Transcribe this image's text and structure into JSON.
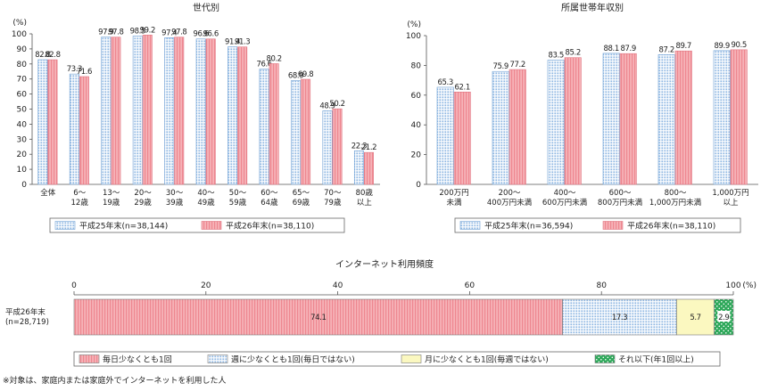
{
  "chart_data": [
    {
      "type": "bar",
      "title": "世代別",
      "unit": "(%)",
      "ylim": [
        0,
        100
      ],
      "yticks": [
        0,
        10,
        20,
        30,
        40,
        50,
        60,
        70,
        80,
        90,
        100
      ],
      "categories": [
        [
          "全体"
        ],
        [
          "6～",
          "12歳"
        ],
        [
          "13～",
          "19歳"
        ],
        [
          "20～",
          "29歳"
        ],
        [
          "30～",
          "39歳"
        ],
        [
          "40～",
          "49歳"
        ],
        [
          "50～",
          "59歳"
        ],
        [
          "60～",
          "64歳"
        ],
        [
          "65～",
          "69歳"
        ],
        [
          "70～",
          "79歳"
        ],
        [
          "80歳",
          "以上"
        ]
      ],
      "series": [
        {
          "name": "平成25年末(n=38,144)",
          "color": "#9ec3e6",
          "pattern": "dots",
          "values": [
            82.8,
            73.3,
            97.9,
            98.5,
            97.4,
            96.6,
            91.4,
            76.6,
            68.9,
            48.9,
            22.3
          ]
        },
        {
          "name": "平成26年末(n=38,110)",
          "color": "#f4a0a6",
          "pattern": "lines",
          "values": [
            82.8,
            71.6,
            97.8,
            99.2,
            97.8,
            96.6,
            91.3,
            80.2,
            69.8,
            50.2,
            21.2
          ]
        }
      ],
      "grid": false,
      "legend": "bottom"
    },
    {
      "type": "bar",
      "title": "所属世帯年収別",
      "unit": "(%)",
      "ylim": [
        0,
        100
      ],
      "yticks": [
        0,
        20,
        40,
        60,
        80,
        100
      ],
      "categories": [
        [
          "200万円",
          "未満"
        ],
        [
          "200～",
          "400万円未満"
        ],
        [
          "400～",
          "600万円未満"
        ],
        [
          "600～",
          "800万円未満"
        ],
        [
          "800～",
          "1,000万円未満"
        ],
        [
          "1,000万円",
          "以上"
        ]
      ],
      "series": [
        {
          "name": "平成25年末(n=36,594)",
          "color": "#9ec3e6",
          "pattern": "dots",
          "values": [
            65.3,
            75.9,
            83.5,
            88.1,
            87.2,
            89.9
          ]
        },
        {
          "name": "平成26年末(n=38,110)",
          "color": "#f4a0a6",
          "pattern": "lines",
          "values": [
            62.1,
            77.2,
            85.2,
            87.9,
            89.7,
            90.5
          ]
        }
      ],
      "grid": false,
      "legend": "bottom"
    },
    {
      "type": "bar",
      "orientation": "horizontal",
      "stacked": true,
      "title": "インターネット利用頻度",
      "unit": "(%)",
      "xlim": [
        0,
        100
      ],
      "xticks": [
        0,
        20,
        40,
        60,
        80,
        100
      ],
      "row_label": [
        "平成26年末",
        "(n=28,719)"
      ],
      "segments": [
        {
          "name": "毎日少なくとも1回",
          "value": 74.1,
          "color": "#f4a0a6",
          "pattern": "lines"
        },
        {
          "name": "週に少なくとも1回(毎日ではない)",
          "value": 17.3,
          "color": "#9ec3e6",
          "pattern": "dots"
        },
        {
          "name": "月に少なくとも1回(毎週ではない)",
          "value": 5.7,
          "color": "#fbf8c0",
          "pattern": "none"
        },
        {
          "name": "それ以下(年1回以上)",
          "value": 2.9,
          "color": "#2ea85a",
          "pattern": "whitedots"
        }
      ],
      "legend": "bottom"
    }
  ],
  "footnote": "※対象は、家庭内または家庭外でインターネットを利用した人"
}
